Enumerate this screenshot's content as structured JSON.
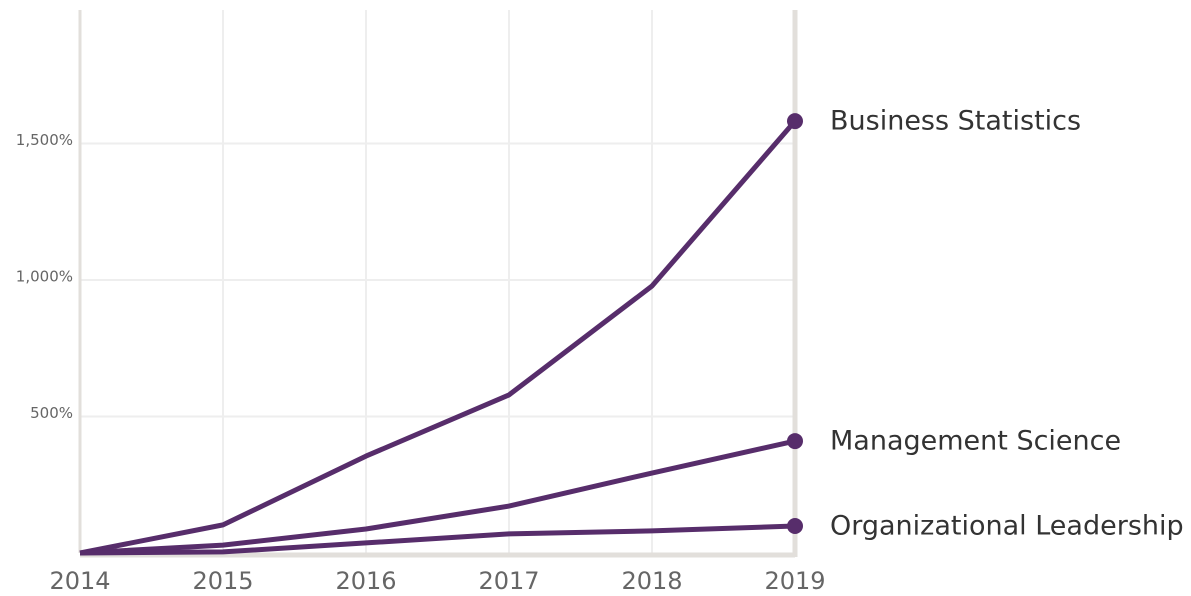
{
  "chart_data": {
    "type": "line",
    "x": [
      2014,
      2015,
      2016,
      2017,
      2018,
      2019
    ],
    "xlim": [
      2014,
      2019
    ],
    "xticks": [
      2014,
      2015,
      2016,
      2017,
      2018,
      2019
    ],
    "ylim": [
      0,
      2000
    ],
    "yticks": [
      {
        "value": 500,
        "label": "500%"
      },
      {
        "value": 1000,
        "label": "1,000%"
      },
      {
        "value": 1500,
        "label": "1,500%"
      }
    ],
    "grid": true,
    "series": [
      {
        "name": "Business Statistics",
        "color": "#572d6b",
        "values": [
          0,
          103,
          355,
          579,
          978,
          1582
        ]
      },
      {
        "name": "Management Science",
        "color": "#572d6b",
        "values": [
          0,
          29,
          88,
          172,
          293,
          410
        ]
      },
      {
        "name": "Organizational Leadership",
        "color": "#572d6b",
        "values": [
          0,
          4,
          37,
          70,
          81,
          99
        ]
      }
    ]
  }
}
